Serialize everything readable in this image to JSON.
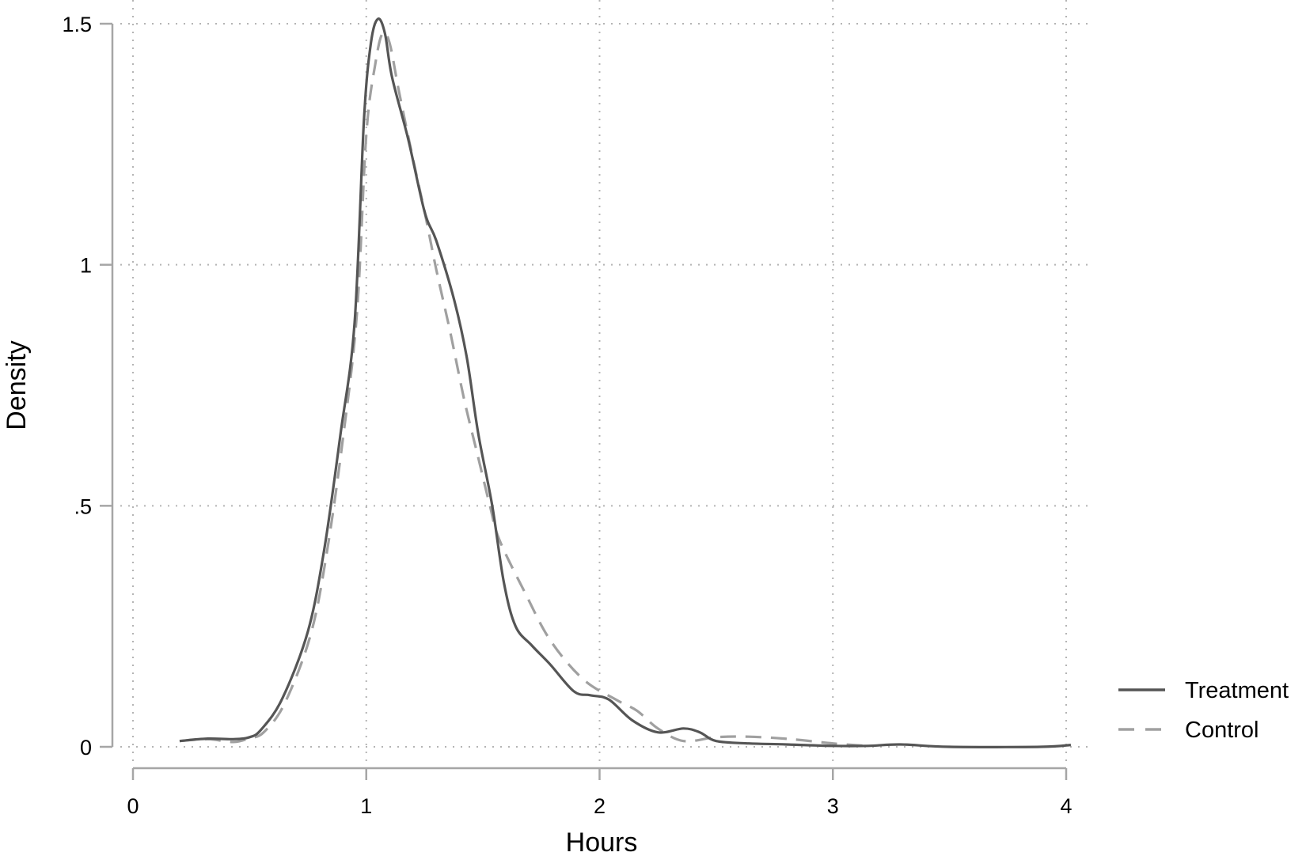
{
  "chart_data": {
    "type": "line",
    "title": "",
    "xlabel": "Hours",
    "ylabel": "Density",
    "xlim": [
      0,
      4
    ],
    "ylim": [
      0,
      1.5
    ],
    "x_ticks": [
      0,
      1,
      2,
      3,
      4
    ],
    "x_tick_labels": [
      "0",
      "1",
      "2",
      "3",
      "4"
    ],
    "y_ticks": [
      0,
      0.5,
      1,
      1.5
    ],
    "y_tick_labels": [
      "0",
      ".5",
      "1",
      "1.5"
    ],
    "grid": true,
    "grid_style": "dotted",
    "legend_position": "right",
    "series": [
      {
        "name": "Treatment",
        "style": "solid",
        "color": "#555555",
        "x": [
          0.2,
          0.32,
          0.43,
          0.5,
          0.55,
          0.64,
          0.75,
          0.82,
          0.89,
          0.95,
          0.99,
          1.02,
          1.05,
          1.08,
          1.11,
          1.18,
          1.25,
          1.3,
          1.375,
          1.43,
          1.48,
          1.54,
          1.59,
          1.64,
          1.71,
          1.79,
          1.89,
          1.96,
          2.04,
          2.14,
          2.25,
          2.36,
          2.43,
          2.5,
          2.64,
          2.8,
          3.0,
          3.15,
          3.29,
          3.5,
          3.89,
          4.02
        ],
        "y": [
          0.012,
          0.017,
          0.016,
          0.02,
          0.036,
          0.1,
          0.24,
          0.41,
          0.65,
          0.88,
          1.3,
          1.46,
          1.51,
          1.48,
          1.39,
          1.26,
          1.11,
          1.05,
          0.93,
          0.81,
          0.65,
          0.5,
          0.34,
          0.25,
          0.21,
          0.17,
          0.115,
          0.107,
          0.098,
          0.055,
          0.03,
          0.038,
          0.03,
          0.012,
          0.007,
          0.005,
          0.002,
          0.002,
          0.005,
          0.0,
          0.0,
          0.004
        ]
      },
      {
        "name": "Control",
        "style": "dashed",
        "color": "#a0a0a0",
        "x": [
          0.2,
          0.32,
          0.43,
          0.5,
          0.56,
          0.65,
          0.76,
          0.83,
          0.9,
          0.96,
          1.0,
          1.04,
          1.07,
          1.1,
          1.14,
          1.2,
          1.25,
          1.3,
          1.36,
          1.42,
          1.48,
          1.53,
          1.57,
          1.68,
          1.79,
          1.93,
          2.07,
          2.16,
          2.25,
          2.36,
          2.5,
          2.64,
          2.82,
          3.0,
          3.14
        ],
        "y": [
          0.012,
          0.016,
          0.01,
          0.018,
          0.03,
          0.09,
          0.23,
          0.4,
          0.64,
          0.9,
          1.27,
          1.42,
          1.48,
          1.46,
          1.36,
          1.22,
          1.11,
          0.99,
          0.86,
          0.72,
          0.6,
          0.5,
          0.43,
          0.32,
          0.22,
          0.14,
          0.098,
          0.075,
          0.038,
          0.012,
          0.02,
          0.021,
          0.016,
          0.007,
          0.002
        ]
      }
    ]
  },
  "axes": {
    "x_title": "Hours",
    "y_title": "Density"
  },
  "legend": {
    "items": [
      {
        "label": "Treatment",
        "style": "solid"
      },
      {
        "label": "Control",
        "style": "dashed"
      }
    ]
  },
  "colors": {
    "treatment": "#555555",
    "control": "#a0a0a0",
    "axis": "#a6a6a6",
    "grid": "#b4b4b4"
  }
}
